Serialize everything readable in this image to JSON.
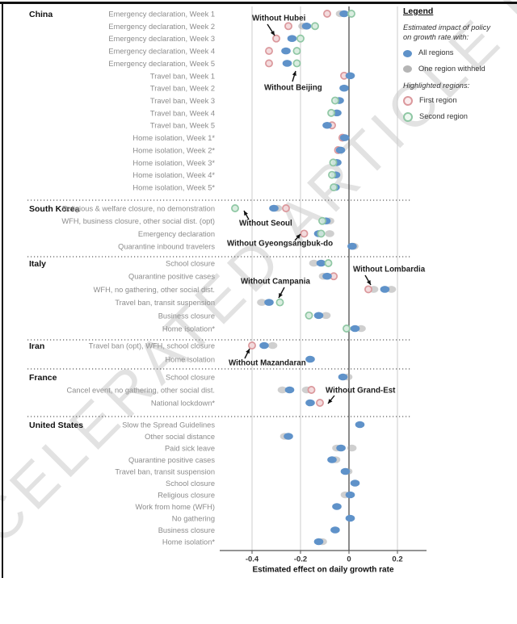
{
  "watermark": "ACCELERATED ARTICLE PREVIEW",
  "legend": {
    "title": "Legend",
    "subtitle_line1": "Estimated impact of policy",
    "subtitle_line2": "on growth rate with:",
    "items": [
      {
        "kind": "all",
        "label": "All regions"
      },
      {
        "kind": "withheld",
        "label": "One region withheld"
      }
    ],
    "highlight_title": "Highlighted regions:",
    "highlight_items": [
      {
        "kind": "first",
        "label": "First region"
      },
      {
        "kind": "second",
        "label": "Second region"
      }
    ]
  },
  "chart_data": {
    "type": "scatter",
    "xlabel": "Estimated effect on daily growth rate",
    "x_ticks": [
      -0.4,
      -0.2,
      0,
      0.2
    ],
    "xlim": [
      -0.53,
      0.32
    ],
    "zero_line": true,
    "grid": "vertical",
    "legend_position": "top-right",
    "colors": {
      "all": "#5f92c9",
      "withheld": "#a0a0a0",
      "first_stroke": "#db989c",
      "first_fill": "#f2d7d9",
      "second_stroke": "#8fc7a4",
      "second_fill": "#d6ebdd",
      "gridline": "#cccccc",
      "zero_line": "#4d4d4d"
    },
    "groups": [
      {
        "country": "China",
        "rows": [
          {
            "label": "Emergency declaration, Week 1",
            "points": [
              {
                "kind": "first",
                "value": -0.09
              },
              {
                "kind": "withheld",
                "value": -0.035
              },
              {
                "kind": "all",
                "value": -0.02
              },
              {
                "kind": "second",
                "value": 0.01
              }
            ]
          },
          {
            "label": "Emergency declaration, Week 2",
            "points": [
              {
                "kind": "first",
                "value": -0.25
              },
              {
                "kind": "withheld",
                "value": -0.19
              },
              {
                "kind": "all",
                "value": -0.175
              },
              {
                "kind": "second",
                "value": -0.14
              }
            ]
          },
          {
            "label": "Emergency declaration, Week 3",
            "points": [
              {
                "kind": "first",
                "value": -0.3
              },
              {
                "kind": "all",
                "value": -0.235
              },
              {
                "kind": "second",
                "value": -0.2
              }
            ]
          },
          {
            "label": "Emergency declaration, Week 4",
            "points": [
              {
                "kind": "first",
                "value": -0.33
              },
              {
                "kind": "all",
                "value": -0.26
              },
              {
                "kind": "second",
                "value": -0.215
              }
            ]
          },
          {
            "label": "Emergency declaration, Week 5",
            "points": [
              {
                "kind": "first",
                "value": -0.33
              },
              {
                "kind": "all",
                "value": -0.255
              },
              {
                "kind": "second",
                "value": -0.215
              }
            ]
          },
          {
            "label": "Travel ban, Week 1",
            "points": [
              {
                "kind": "first",
                "value": -0.02
              },
              {
                "kind": "all",
                "value": 0.005
              }
            ]
          },
          {
            "label": "Travel ban, Week 2",
            "points": [
              {
                "kind": "all",
                "value": -0.02
              }
            ]
          },
          {
            "label": "Travel ban, Week 3",
            "points": [
              {
                "kind": "second",
                "value": -0.057
              },
              {
                "kind": "all",
                "value": -0.04
              }
            ]
          },
          {
            "label": "Travel ban, Week 4",
            "points": [
              {
                "kind": "second",
                "value": -0.073
              },
              {
                "kind": "all",
                "value": -0.05
              }
            ]
          },
          {
            "label": "Travel ban, Week 5",
            "points": [
              {
                "kind": "all",
                "value": -0.09
              },
              {
                "kind": "first",
                "value": -0.07
              }
            ]
          },
          {
            "label": "Home isolation, Week 1*",
            "points": [
              {
                "kind": "first",
                "value": -0.027
              },
              {
                "kind": "all",
                "value": -0.018
              }
            ]
          },
          {
            "label": "Home isolation, Week 2*",
            "points": [
              {
                "kind": "first",
                "value": -0.045
              },
              {
                "kind": "all",
                "value": -0.035
              }
            ]
          },
          {
            "label": "Home isolation, Week 3*",
            "points": [
              {
                "kind": "second",
                "value": -0.065
              },
              {
                "kind": "all",
                "value": -0.05
              }
            ]
          },
          {
            "label": "Home isolation, Week 4*",
            "points": [
              {
                "kind": "second",
                "value": -0.07
              },
              {
                "kind": "all",
                "value": -0.055
              }
            ]
          },
          {
            "label": "Home isolation, Week 5*",
            "points": [
              {
                "kind": "second",
                "value": -0.063
              },
              {
                "kind": "all",
                "value": -0.057
              }
            ]
          }
        ]
      },
      {
        "country": "South Korea",
        "rows": [
          {
            "label": "Religious & welfare closure, no demonstration",
            "points": [
              {
                "kind": "second",
                "value": -0.47
              },
              {
                "kind": "withheld",
                "value": -0.295
              },
              {
                "kind": "first",
                "value": -0.26
              },
              {
                "kind": "all",
                "value": -0.31
              }
            ]
          },
          {
            "label": "WFH, business closure, other social dist. (opt)",
            "points": [
              {
                "kind": "second",
                "value": -0.11
              },
              {
                "kind": "withheld",
                "value": -0.08
              },
              {
                "kind": "all",
                "value": -0.095
              }
            ]
          },
          {
            "label": "Emergency declaration",
            "points": [
              {
                "kind": "first",
                "value": -0.185
              },
              {
                "kind": "second",
                "value": -0.115
              },
              {
                "kind": "withheld",
                "value": -0.08
              },
              {
                "kind": "all",
                "value": -0.125
              }
            ]
          },
          {
            "label": "Quarantine inbound travelers",
            "points": [
              {
                "kind": "withheld",
                "value": 0.02
              },
              {
                "kind": "all",
                "value": 0.013
              }
            ]
          }
        ]
      },
      {
        "country": "Italy",
        "rows": [
          {
            "label": "School closure",
            "points": [
              {
                "kind": "withheld",
                "value": -0.145
              },
              {
                "kind": "all",
                "value": -0.115
              },
              {
                "kind": "second",
                "value": -0.085
              }
            ]
          },
          {
            "label": "Quarantine positive cases",
            "points": [
              {
                "kind": "withheld",
                "value": -0.105
              },
              {
                "kind": "all",
                "value": -0.09
              },
              {
                "kind": "first",
                "value": -0.063
              }
            ]
          },
          {
            "label": "WFH, no gathering, other social dist.",
            "points": [
              {
                "kind": "first",
                "value": 0.08
              },
              {
                "kind": "withheld",
                "value": 0.102
              },
              {
                "kind": "all",
                "value": 0.148
              },
              {
                "kind": "withheld",
                "value": 0.175
              }
            ]
          },
          {
            "label": "Travel ban, transit suspension",
            "points": [
              {
                "kind": "withheld",
                "value": -0.36
              },
              {
                "kind": "all",
                "value": -0.33
              },
              {
                "kind": "second",
                "value": -0.285
              }
            ]
          },
          {
            "label": "Business closure",
            "points": [
              {
                "kind": "second",
                "value": -0.165
              },
              {
                "kind": "all",
                "value": -0.125
              },
              {
                "kind": "withheld",
                "value": -0.095
              }
            ]
          },
          {
            "label": "Home isolation*",
            "points": [
              {
                "kind": "second",
                "value": -0.01
              },
              {
                "kind": "all",
                "value": 0.025
              },
              {
                "kind": "withheld",
                "value": 0.05
              }
            ]
          }
        ]
      },
      {
        "country": "Iran",
        "rows": [
          {
            "label": "Travel ban (opt), WFH, school closure",
            "points": [
              {
                "kind": "first",
                "value": -0.4
              },
              {
                "kind": "withheld",
                "value": -0.315
              },
              {
                "kind": "all",
                "value": -0.35
              }
            ]
          },
          {
            "label": "Home isolation",
            "points": [
              {
                "kind": "all",
                "value": -0.16
              }
            ]
          }
        ]
      },
      {
        "country": "France",
        "rows": [
          {
            "label": "School closure",
            "points": [
              {
                "kind": "withheld",
                "value": -0.005
              },
              {
                "kind": "all",
                "value": -0.025
              }
            ]
          },
          {
            "label": "Cancel event, no gathering, other social dist.",
            "points": [
              {
                "kind": "withheld",
                "value": -0.275
              },
              {
                "kind": "all",
                "value": -0.245
              },
              {
                "kind": "withheld",
                "value": -0.175
              },
              {
                "kind": "first",
                "value": -0.155
              }
            ]
          },
          {
            "label": "National lockdown*",
            "points": [
              {
                "kind": "all",
                "value": -0.16
              },
              {
                "kind": "first",
                "value": -0.12
              }
            ]
          }
        ]
      },
      {
        "country": "United States",
        "rows": [
          {
            "label": "Slow the Spread Guidelines",
            "points": [
              {
                "kind": "all",
                "value": 0.045
              }
            ]
          },
          {
            "label": "Other social distance",
            "points": [
              {
                "kind": "withheld",
                "value": -0.265
              },
              {
                "kind": "all",
                "value": -0.25
              }
            ]
          },
          {
            "label": "Paid sick leave",
            "points": [
              {
                "kind": "withheld",
                "value": -0.05
              },
              {
                "kind": "withheld",
                "value": 0.012
              },
              {
                "kind": "all",
                "value": -0.033
              }
            ]
          },
          {
            "label": "Quarantine positive cases",
            "points": [
              {
                "kind": "withheld",
                "value": -0.055
              },
              {
                "kind": "all",
                "value": -0.07
              }
            ]
          },
          {
            "label": "Travel ban, transit suspension",
            "points": [
              {
                "kind": "withheld",
                "value": -0.005
              },
              {
                "kind": "all",
                "value": -0.015
              }
            ]
          },
          {
            "label": "School closure",
            "points": [
              {
                "kind": "all",
                "value": 0.025
              }
            ]
          },
          {
            "label": "Religious closure",
            "points": [
              {
                "kind": "withheld",
                "value": -0.015
              },
              {
                "kind": "all",
                "value": 0.005
              }
            ]
          },
          {
            "label": "Work from home (WFH)",
            "points": [
              {
                "kind": "all",
                "value": -0.05
              }
            ]
          },
          {
            "label": "No gathering",
            "points": [
              {
                "kind": "all",
                "value": 0.005
              }
            ]
          },
          {
            "label": "Business closure",
            "points": [
              {
                "kind": "all",
                "value": -0.057
              }
            ]
          },
          {
            "label": "Home isolation*",
            "points": [
              {
                "kind": "withheld",
                "value": -0.11
              },
              {
                "kind": "all",
                "value": -0.125
              }
            ]
          }
        ]
      }
    ],
    "annotations": [
      {
        "text": "Without Hubei"
      },
      {
        "text": "Without Beijing"
      },
      {
        "text": "Without Seoul"
      },
      {
        "text": "Without Gyeongsangbuk-do"
      },
      {
        "text": "Without Campania"
      },
      {
        "text": "Without Lombardia"
      },
      {
        "text": "Without Mazandaran"
      },
      {
        "text": "Without Grand-Est"
      }
    ]
  }
}
